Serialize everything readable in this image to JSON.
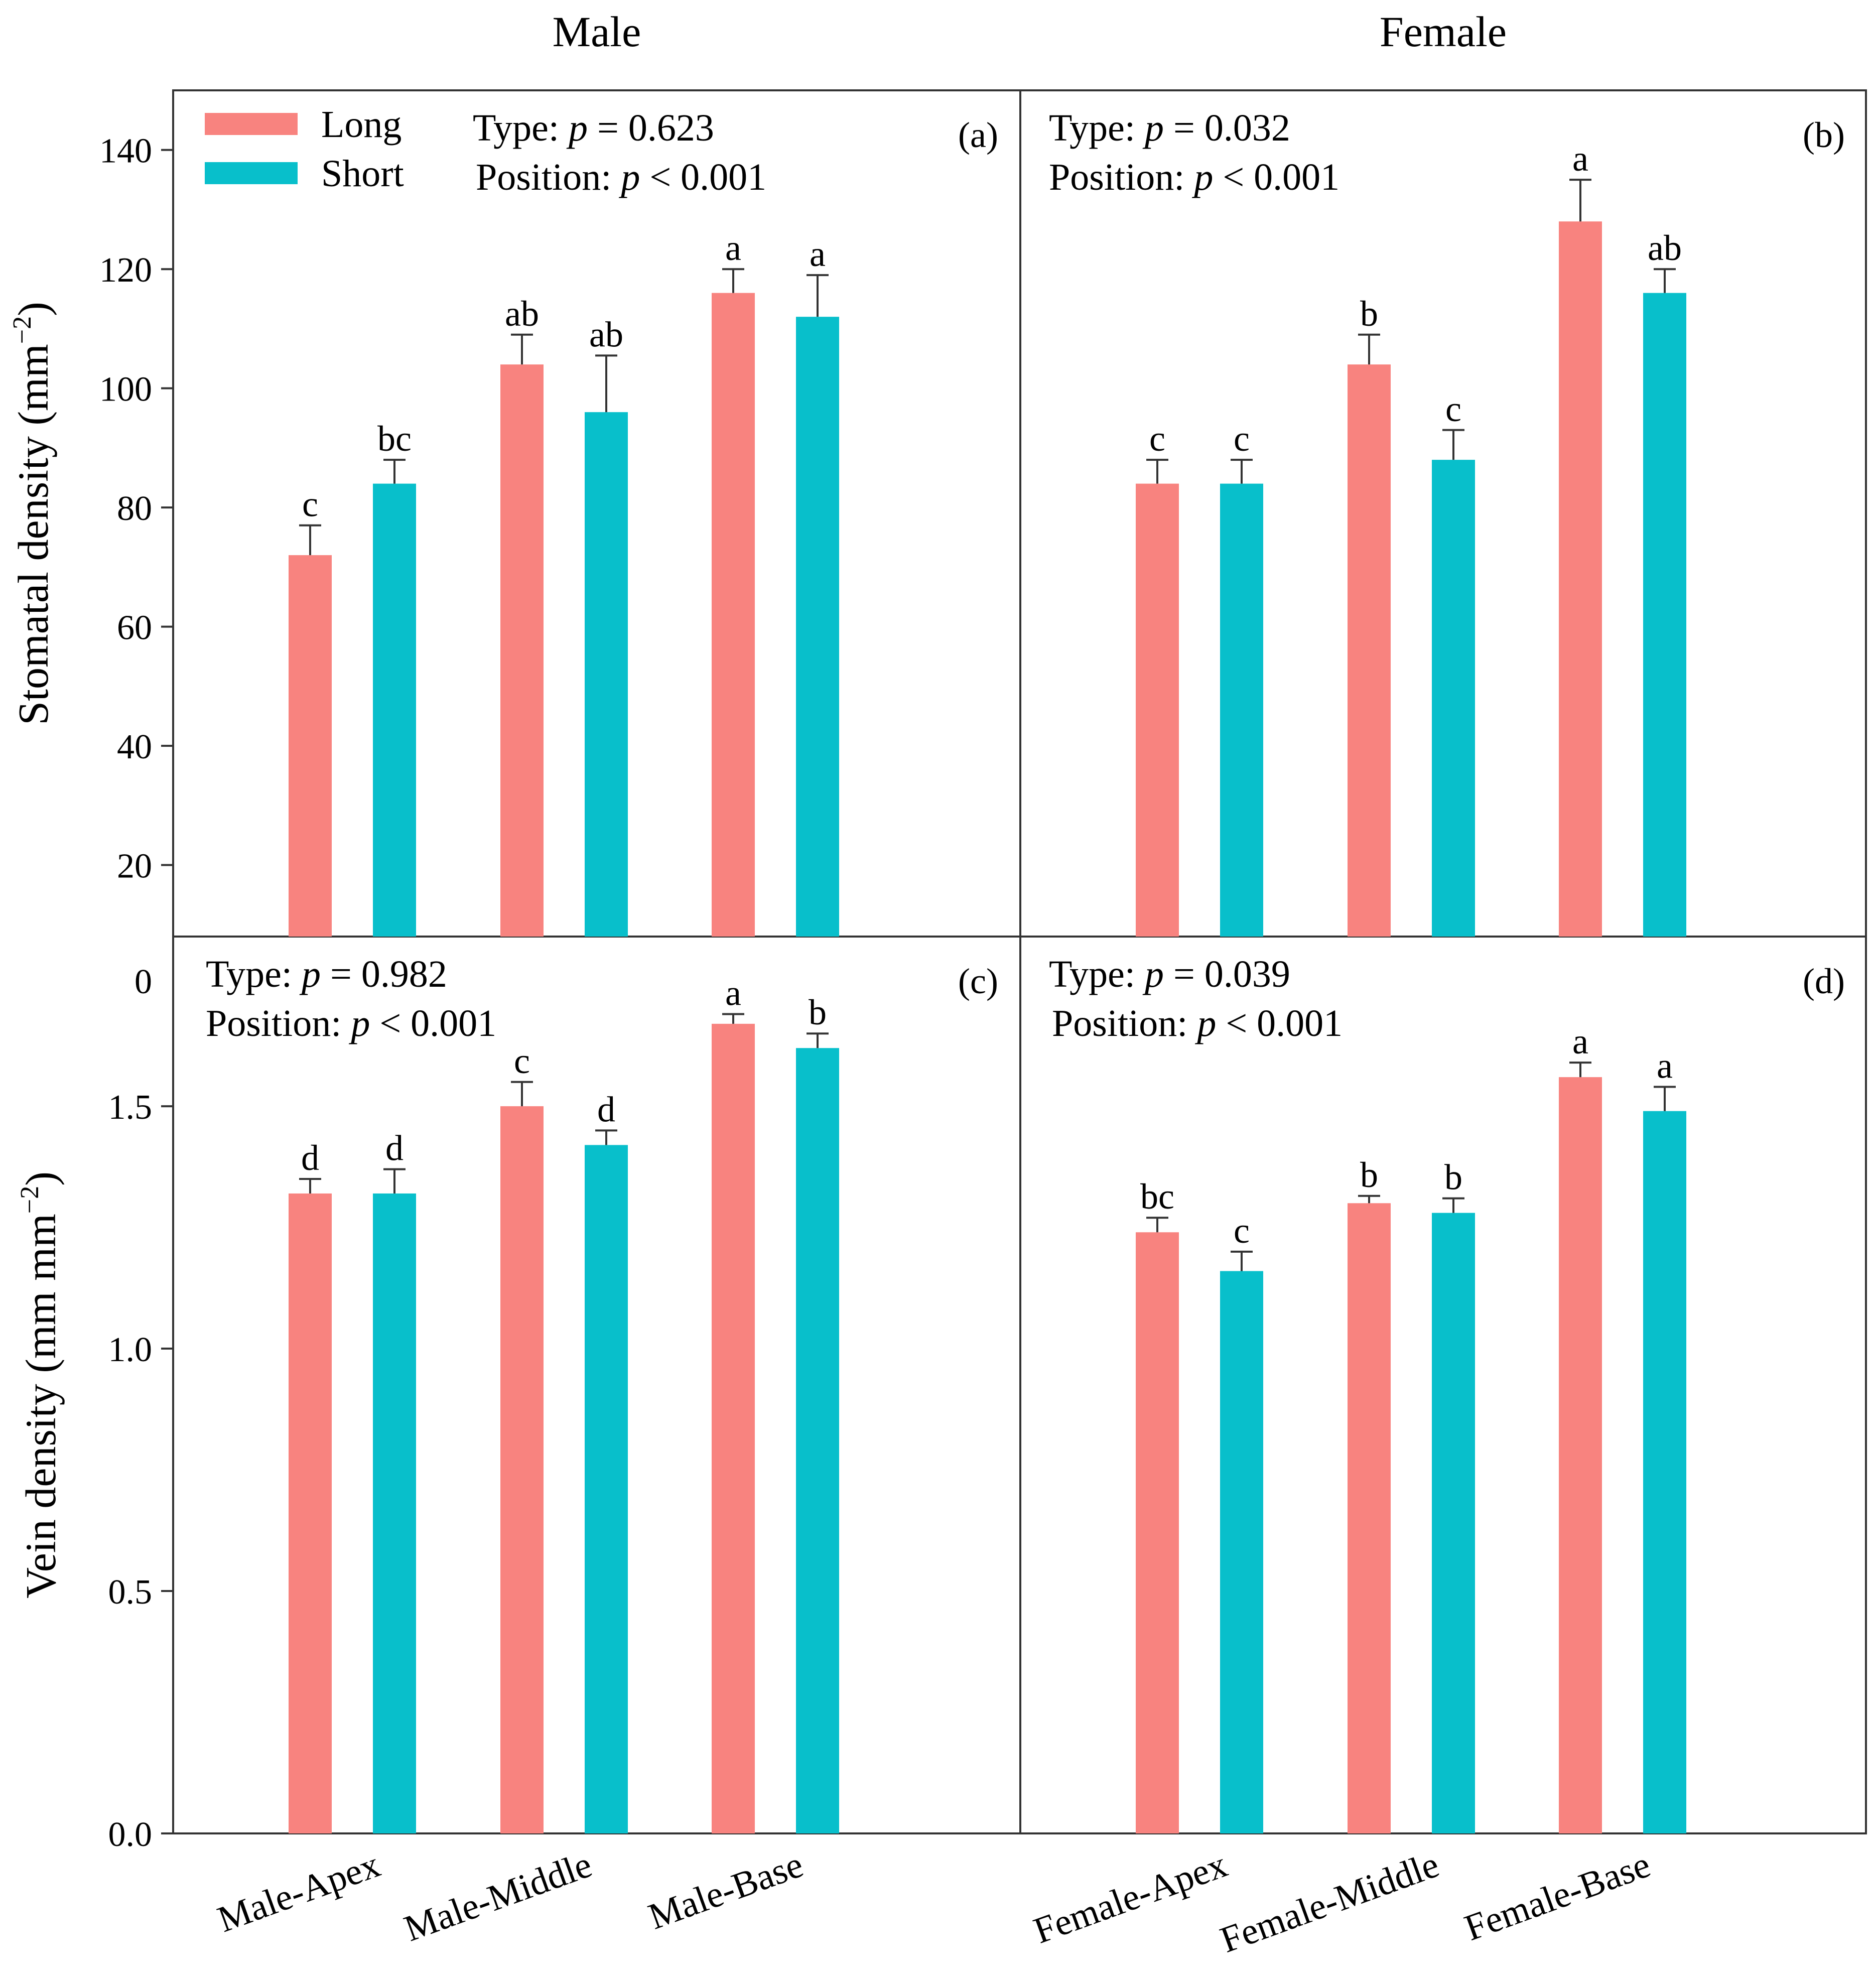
{
  "colors": {
    "long": "#F8837F",
    "short": "#08BFCB",
    "axis": "#333333"
  },
  "column_titles": [
    "Male",
    "Female"
  ],
  "legend": [
    {
      "name": "Long",
      "color": "#F8837F"
    },
    {
      "name": "Short",
      "color": "#08BFCB"
    }
  ],
  "chart_data": [
    {
      "id": "a",
      "type": "bar",
      "panel_label": "(a)",
      "column": "Male",
      "row": "stomatal",
      "ylabel": "Stomatal density (mm",
      "ylabel_sup": "−2",
      "ylabel_close": ")",
      "ylim": [
        8,
        150
      ],
      "yticks": [
        20,
        40,
        60,
        80,
        100,
        120,
        140
      ],
      "ytick_labels": [
        "20",
        "40",
        "60",
        "80",
        "100",
        "120",
        "140"
      ],
      "categories": [
        "Male-Apex",
        "Male-Middle",
        "Male-Base"
      ],
      "series": [
        {
          "name": "Long",
          "values": [
            72,
            104,
            116
          ],
          "errors": [
            5,
            5,
            4
          ],
          "letters": [
            "c",
            "ab",
            "a"
          ]
        },
        {
          "name": "Short",
          "values": [
            84,
            96,
            112
          ],
          "errors": [
            4,
            9.5,
            7
          ],
          "letters": [
            "bc",
            "ab",
            "a"
          ]
        }
      ],
      "stats": [
        {
          "pre": "Type: ",
          "p": "p",
          "post": " = 0.623"
        },
        {
          "pre": "Position: ",
          "p": "p",
          "post": " < 0.001"
        }
      ]
    },
    {
      "id": "b",
      "type": "bar",
      "panel_label": "(b)",
      "column": "Female",
      "row": "stomatal",
      "ylim": [
        8,
        150
      ],
      "categories": [
        "Female-Apex",
        "Female-Middle",
        "Female-Base"
      ],
      "series": [
        {
          "name": "Long",
          "values": [
            84,
            104,
            128
          ],
          "errors": [
            4,
            5,
            7
          ],
          "letters": [
            "c",
            "b",
            "a"
          ]
        },
        {
          "name": "Short",
          "values": [
            84,
            88,
            116
          ],
          "errors": [
            4,
            5,
            4
          ],
          "letters": [
            "c",
            "c",
            "ab"
          ]
        }
      ],
      "stats": [
        {
          "pre": "Type: ",
          "p": "p",
          "post": " = 0.032"
        },
        {
          "pre": "Position: ",
          "p": "p",
          "post": " < 0.001"
        }
      ]
    },
    {
      "id": "c",
      "type": "bar",
      "panel_label": "(c)",
      "column": "Male",
      "row": "vein",
      "ylabel": "Vein density (mm mm",
      "ylabel_sup": "−2",
      "ylabel_close": ")",
      "ylim": [
        0,
        1.85
      ],
      "yticks": [
        0.0,
        0.5,
        1.0,
        1.5
      ],
      "ytick_labels": [
        "0.0",
        "0.5",
        "1.0",
        "1.5"
      ],
      "top_tick_label": "0",
      "categories": [
        "Male-Apex",
        "Male-Middle",
        "Male-Base"
      ],
      "series": [
        {
          "name": "Long",
          "values": [
            1.32,
            1.5,
            1.67
          ],
          "errors": [
            0.03,
            0.05,
            0.02
          ],
          "letters": [
            "d",
            "c",
            "a"
          ]
        },
        {
          "name": "Short",
          "values": [
            1.32,
            1.42,
            1.62
          ],
          "errors": [
            0.05,
            0.03,
            0.03
          ],
          "letters": [
            "d",
            "d",
            "b"
          ]
        }
      ],
      "stats": [
        {
          "pre": "Type: ",
          "p": "p",
          "post": " = 0.982"
        },
        {
          "pre": "Position: ",
          "p": "p",
          "post": " < 0.001"
        }
      ]
    },
    {
      "id": "d",
      "type": "bar",
      "panel_label": "(d)",
      "column": "Female",
      "row": "vein",
      "ylim": [
        0,
        1.85
      ],
      "categories": [
        "Female-Apex",
        "Female-Middle",
        "Female-Base"
      ],
      "series": [
        {
          "name": "Long",
          "values": [
            1.24,
            1.3,
            1.56
          ],
          "errors": [
            0.03,
            0.015,
            0.03
          ],
          "letters": [
            "bc",
            "b",
            "a"
          ]
        },
        {
          "name": "Short",
          "values": [
            1.16,
            1.28,
            1.49
          ],
          "errors": [
            0.04,
            0.03,
            0.05
          ],
          "letters": [
            "c",
            "b",
            "a"
          ]
        }
      ],
      "stats": [
        {
          "pre": "Type: ",
          "p": "p",
          "post": " = 0.039"
        },
        {
          "pre": "Position: ",
          "p": "p",
          "post": " < 0.001"
        }
      ]
    }
  ]
}
